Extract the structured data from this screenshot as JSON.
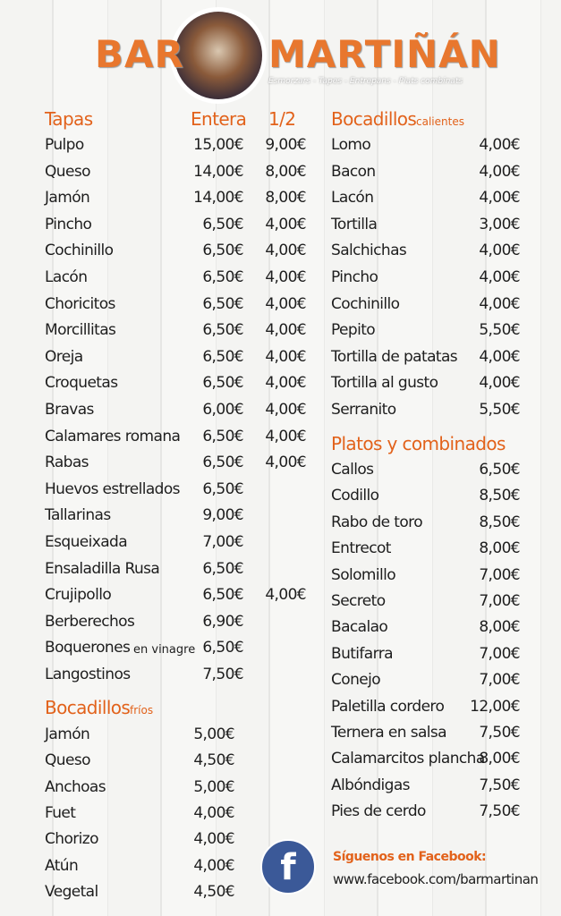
{
  "header": {
    "brand_left": "BAR",
    "brand_right": "MARTIÑÁN",
    "tagline": "Esmorzars - Tapes - Entrepans - Plats combinats"
  },
  "tapas": {
    "title": "Tapas",
    "col_entera": "Entera",
    "col_half": "1/2",
    "items": [
      {
        "name": "Pulpo",
        "price": "15,00€",
        "half": "9,00€"
      },
      {
        "name": "Queso",
        "price": "14,00€",
        "half": "8,00€"
      },
      {
        "name": "Jamón",
        "price": "14,00€",
        "half": "8,00€"
      },
      {
        "name": "Pincho",
        "price": "6,50€",
        "half": "4,00€"
      },
      {
        "name": "Cochinillo",
        "price": "6,50€",
        "half": "4,00€"
      },
      {
        "name": "Lacón",
        "price": "6,50€",
        "half": "4,00€"
      },
      {
        "name": "Choricitos",
        "price": "6,50€",
        "half": "4,00€"
      },
      {
        "name": "Morcillitas",
        "price": "6,50€",
        "half": "4,00€"
      },
      {
        "name": "Oreja",
        "price": "6,50€",
        "half": "4,00€"
      },
      {
        "name": "Croquetas",
        "price": "6,50€",
        "half": "4,00€"
      },
      {
        "name": "Bravas",
        "price": "6,00€",
        "half": "4,00€"
      },
      {
        "name": "Calamares romana",
        "price": "6,50€",
        "half": "4,00€"
      },
      {
        "name": "Rabas",
        "price": "6,50€",
        "half": "4,00€"
      },
      {
        "name": "Huevos estrellados",
        "price": "6,50€"
      },
      {
        "name": "Tallarinas",
        "price": "9,00€"
      },
      {
        "name": "Esqueixada",
        "price": "7,00€"
      },
      {
        "name": "Ensaladilla Rusa",
        "price": "6,50€"
      },
      {
        "name": "Crujipollo",
        "price": "6,50€",
        "half": "4,00€"
      },
      {
        "name": "Berberechos",
        "price": "6,90€"
      },
      {
        "name": "Boquerones",
        "note": "en vinagre",
        "price": "6,50€"
      },
      {
        "name": "Langostinos",
        "price": "7,50€"
      }
    ]
  },
  "bocadillos_frios": {
    "title": "Bocadillos",
    "subtitle": "fríos",
    "items": [
      {
        "name": "Jamón",
        "price": "5,00€"
      },
      {
        "name": "Queso",
        "price": "4,50€"
      },
      {
        "name": "Anchoas",
        "price": "5,00€"
      },
      {
        "name": "Fuet",
        "price": "4,00€"
      },
      {
        "name": "Chorizo",
        "price": "4,00€"
      },
      {
        "name": "Atún",
        "price": "4,00€"
      },
      {
        "name": "Vegetal",
        "price": "4,50€"
      }
    ]
  },
  "bocadillos_calientes": {
    "title": "Bocadillos",
    "subtitle": "calientes",
    "items": [
      {
        "name": "Lomo",
        "price": "4,00€"
      },
      {
        "name": "Bacon",
        "price": "4,00€"
      },
      {
        "name": "Lacón",
        "price": "4,00€"
      },
      {
        "name": "Tortilla",
        "price": "3,00€"
      },
      {
        "name": "Salchichas",
        "price": "4,00€"
      },
      {
        "name": "Pincho",
        "price": "4,00€"
      },
      {
        "name": "Cochinillo",
        "price": "4,00€"
      },
      {
        "name": "Pepito",
        "price": "5,50€"
      },
      {
        "name": "Tortilla de patatas",
        "price": "4,00€"
      },
      {
        "name": "Tortilla al gusto",
        "price": "4,00€"
      },
      {
        "name": "Serranito",
        "price": "5,50€"
      }
    ]
  },
  "platos": {
    "title": "Platos y combinados",
    "items": [
      {
        "name": "Callos",
        "price": "6,50€"
      },
      {
        "name": "Codillo",
        "price": "8,50€"
      },
      {
        "name": "Rabo de toro",
        "price": "8,50€"
      },
      {
        "name": "Entrecot",
        "price": "8,00€"
      },
      {
        "name": "Solomillo",
        "price": "7,00€"
      },
      {
        "name": "Secreto",
        "price": "7,00€"
      },
      {
        "name": "Bacalao",
        "price": "8,00€"
      },
      {
        "name": "Butifarra",
        "price": "7,00€"
      },
      {
        "name": "Conejo",
        "price": "7,00€"
      },
      {
        "name": "Paletilla cordero",
        "price": "12,00€"
      },
      {
        "name": "Ternera en salsa",
        "price": "7,50€"
      },
      {
        "name": "Calamarcitos plancha",
        "price": "8,00€"
      },
      {
        "name": "Albóndigas",
        "price": "7,50€"
      },
      {
        "name": "Pies de cerdo",
        "price": "7,50€"
      }
    ]
  },
  "facebook": {
    "icon": "f",
    "heading": "Síguenos en Facebook:",
    "url": "www.facebook.com/barmartinan"
  }
}
